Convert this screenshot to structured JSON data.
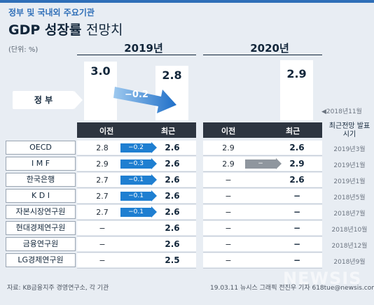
{
  "header": {
    "subtitle": "정부 및 국내외 주요기관",
    "title_main": "GDP 성장률",
    "title_light": "전망치",
    "unit": "(단위: %)"
  },
  "years": {
    "y2019": "2019년",
    "y2020": "2020년"
  },
  "gov": {
    "label": "정 부",
    "prev_2019": "3.0",
    "curr_2019": "2.8",
    "change_2019": "−0.2",
    "curr_2020": "2.9",
    "date": "◀2018년11월"
  },
  "table_head": {
    "prev": "이전",
    "curr": "최근",
    "prev2": "이전",
    "curr2": "최근",
    "note": "최근전망 발표시기"
  },
  "rows": [
    {
      "name": "OECD",
      "prev19": "2.8",
      "chg19": "−0.2",
      "curr19": "2.6",
      "prev20": "2.9",
      "chg20": "",
      "curr20": "2.6",
      "date": "2019년3월"
    },
    {
      "name": "I M F",
      "prev19": "2.9",
      "chg19": "−0.3",
      "curr19": "2.6",
      "prev20": "2.9",
      "chg20": "−",
      "curr20": "2.9",
      "date": "2019년1월"
    },
    {
      "name": "한국은행",
      "prev19": "2.7",
      "chg19": "−0.1",
      "curr19": "2.6",
      "prev20": "−",
      "chg20": "",
      "curr20": "2.6",
      "date": "2019년1월"
    },
    {
      "name": "K D I",
      "prev19": "2.7",
      "chg19": "−0.1",
      "curr19": "2.6",
      "prev20": "−",
      "chg20": "",
      "curr20": "−",
      "date": "2018년5월"
    },
    {
      "name": "자본시장연구원",
      "prev19": "2.7",
      "chg19": "−0.1",
      "curr19": "2.6",
      "prev20": "−",
      "chg20": "",
      "curr20": "−",
      "date": "2018년7월"
    },
    {
      "name": "현대경제연구원",
      "prev19": "−",
      "chg19": "",
      "curr19": "2.6",
      "prev20": "−",
      "chg20": "",
      "curr20": "−",
      "date": "2018년10월"
    },
    {
      "name": "금융연구원",
      "prev19": "−",
      "chg19": "",
      "curr19": "2.6",
      "prev20": "−",
      "chg20": "",
      "curr20": "−",
      "date": "2018년12월"
    },
    {
      "name": "LG경제연구원",
      "prev19": "−",
      "chg19": "",
      "curr19": "2.5",
      "prev20": "−",
      "chg20": "",
      "curr20": "−",
      "date": "2018년9월"
    }
  ],
  "footer": {
    "source": "자료: KB금융지주 경영연구소, 각 기관",
    "credit": "19.03.11 뉴시스 그래픽 전진우 기자 618tue@newsis.com",
    "watermark": "NEWSIS"
  },
  "chart_data": {
    "type": "table",
    "title": "GDP 성장률 전망치",
    "unit": "%",
    "columns": [
      "기관",
      "2019년 이전",
      "2019년 최근",
      "2020년 이전",
      "2020년 최근",
      "최근전망 발표시기"
    ],
    "rows": [
      [
        "정부",
        3.0,
        2.8,
        null,
        2.9,
        "2018년11월"
      ],
      [
        "OECD",
        2.8,
        2.6,
        2.9,
        2.6,
        "2019년3월"
      ],
      [
        "IMF",
        2.9,
        2.6,
        2.9,
        2.9,
        "2019년1월"
      ],
      [
        "한국은행",
        2.7,
        2.6,
        null,
        2.6,
        "2019년1월"
      ],
      [
        "KDI",
        2.7,
        2.6,
        null,
        null,
        "2018년5월"
      ],
      [
        "자본시장연구원",
        2.7,
        2.6,
        null,
        null,
        "2018년7월"
      ],
      [
        "현대경제연구원",
        null,
        2.6,
        null,
        null,
        "2018년10월"
      ],
      [
        "금융연구원",
        null,
        2.6,
        null,
        null,
        "2018년12월"
      ],
      [
        "LG경제연구원",
        null,
        2.5,
        null,
        null,
        "2018년9월"
      ]
    ]
  }
}
